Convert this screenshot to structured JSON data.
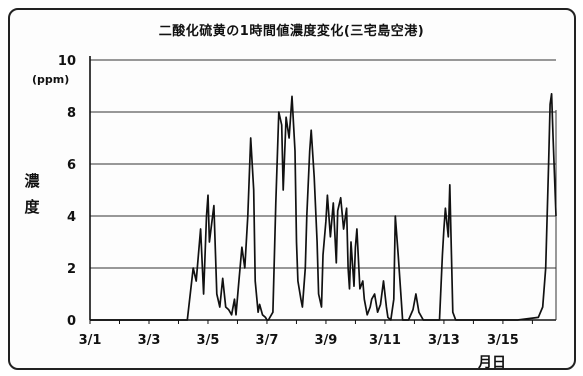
{
  "chart_data": {
    "type": "line",
    "title": "二酸化硫黄の1時間値濃度変化(三宅島空港)",
    "xlabel": "月日",
    "ylabel": "濃度",
    "yunit": "(ppm)",
    "ylim": [
      0,
      10
    ],
    "xlim": [
      1,
      16.8
    ],
    "yticks": [
      "0",
      "2",
      "4",
      "6",
      "8",
      "10"
    ],
    "xticks": [
      "3/1",
      "3/3",
      "3/5",
      "3/7",
      "3/9",
      "3/11",
      "3/13",
      "3/15"
    ],
    "grid": true,
    "line_color": "#111111",
    "series": [
      {
        "x": [
          1,
          4.3,
          4.5,
          4.6,
          4.75,
          4.85,
          4.95,
          5.0,
          5.05,
          5.2,
          5.3,
          5.4,
          5.5,
          5.6,
          5.7,
          5.8,
          5.9,
          5.95,
          6.05,
          6.15,
          6.25,
          6.35,
          6.45,
          6.55,
          6.6,
          6.7,
          6.75,
          6.85,
          6.95,
          7.0,
          7.05,
          7.2,
          7.3,
          7.4,
          7.5,
          7.55,
          7.65,
          7.75,
          7.85,
          7.95,
          8.0,
          8.05,
          8.15,
          8.2,
          8.3,
          8.35,
          8.45,
          8.5,
          8.6,
          8.7,
          8.75,
          8.85,
          8.9,
          9.0,
          9.05,
          9.15,
          9.25,
          9.35,
          9.4,
          9.5,
          9.6,
          9.7,
          9.75,
          9.8,
          9.85,
          9.95,
          10.0,
          10.05,
          10.15,
          10.25,
          10.3,
          10.4,
          10.5,
          10.55,
          10.65,
          10.75,
          10.85,
          10.95,
          11.05,
          11.1,
          11.2,
          11.3,
          11.35,
          11.45,
          11.55,
          11.6,
          11.7,
          11.8,
          11.95,
          12.05,
          12.15,
          12.3,
          12.45,
          12.6,
          12.75,
          12.85,
          12.95,
          13.0,
          13.05,
          13.15,
          13.2,
          13.3,
          13.4,
          13.55,
          13.7,
          13.85,
          14.0,
          14.5,
          15.0,
          15.5,
          16.2,
          16.35,
          16.45,
          16.55,
          16.6,
          16.65,
          16.7,
          16.8
        ],
        "y": [
          0,
          0,
          2.0,
          1.5,
          3.5,
          1.0,
          4.0,
          4.8,
          3.0,
          4.4,
          1.0,
          0.5,
          1.6,
          0.5,
          0.4,
          0.2,
          0.8,
          0.2,
          1.5,
          2.8,
          2.0,
          4.0,
          7.0,
          5.0,
          1.5,
          0.3,
          0.6,
          0.2,
          0.1,
          0.0,
          0.0,
          0.3,
          4.5,
          8.0,
          7.5,
          5.0,
          7.8,
          7.0,
          8.6,
          6.5,
          3.0,
          1.5,
          0.8,
          0.5,
          2.0,
          4.0,
          6.5,
          7.3,
          5.5,
          3.0,
          1.0,
          0.5,
          2.5,
          3.8,
          4.8,
          3.2,
          4.5,
          2.2,
          4.2,
          4.7,
          3.5,
          4.3,
          2.0,
          1.2,
          3.0,
          1.3,
          2.8,
          3.5,
          1.2,
          1.5,
          0.8,
          0.2,
          0.5,
          0.8,
          1.0,
          0.3,
          0.6,
          1.5,
          0.5,
          0.1,
          0.0,
          0.8,
          4.0,
          2.5,
          0.8,
          0.0,
          0.0,
          0.0,
          0.4,
          1.0,
          0.3,
          0.0,
          0.0,
          0.0,
          0.0,
          0.0,
          2.5,
          3.5,
          4.3,
          3.2,
          5.2,
          0.3,
          0.0,
          0.0,
          0.0,
          0.0,
          0.0,
          0.0,
          0.0,
          0.0,
          0.1,
          0.5,
          2.0,
          6.0,
          8.3,
          8.7,
          7.0,
          4.0
        ]
      }
    ]
  }
}
